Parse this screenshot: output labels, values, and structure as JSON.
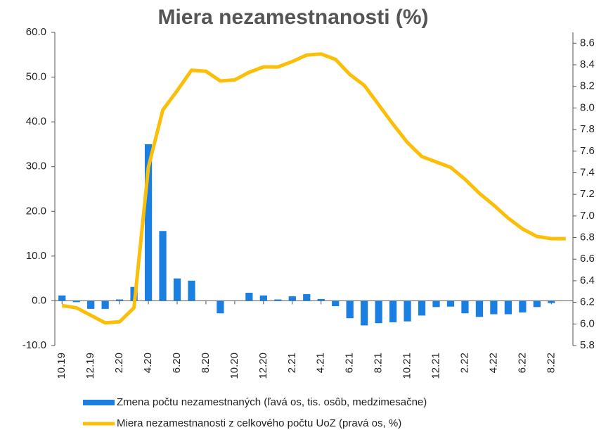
{
  "chart_data": {
    "type": "bar_line",
    "title": "Miera nezamestnanosti (%)",
    "categories": [
      "10.19",
      null,
      "12.19",
      null,
      "2.20",
      null,
      "4.20",
      null,
      "6.20",
      null,
      "8.20",
      null,
      "10.20",
      null,
      "12.20",
      null,
      "2.21",
      null,
      "4.21",
      null,
      "6.21",
      null,
      "8.21",
      null,
      "10.21",
      null,
      "12.21",
      null,
      "2.22",
      null,
      "4.22",
      null,
      "6.22",
      null,
      "8.22",
      null
    ],
    "series": [
      {
        "name": "Zmena počtu nezamestnaných (ľavá os, tis. osôb, medzimesačne)",
        "color": "#1a7fe0",
        "kind": "bar",
        "axis": "y",
        "values": [
          1.2,
          -0.3,
          -1.8,
          -1.8,
          0.3,
          3.1,
          35,
          15.6,
          5.0,
          4.5,
          0,
          -2.8,
          0,
          1.8,
          1.2,
          0.3,
          1.0,
          1.5,
          0.4,
          -1.2,
          -3.9,
          -5.5,
          -5.0,
          -4.8,
          -4.6,
          -3.3,
          -1.4,
          -1.3,
          -2.8,
          -3.6,
          -3.0,
          -3.0,
          -2.6,
          -1.4,
          -0.5,
          null
        ]
      },
      {
        "name": "Miera nezamestnanosti z celkového počtu UoZ (pravá os, %)",
        "color": "#fbbf0a",
        "kind": "line",
        "axis": "y2",
        "values": [
          6.17,
          6.15,
          6.08,
          6.01,
          6.02,
          6.15,
          7.45,
          7.98,
          8.16,
          8.35,
          8.34,
          8.25,
          8.26,
          8.33,
          8.38,
          8.38,
          8.43,
          8.49,
          8.5,
          8.45,
          8.31,
          8.21,
          8.03,
          7.85,
          7.68,
          7.55,
          7.5,
          7.45,
          7.34,
          7.21,
          7.1,
          6.98,
          6.88,
          6.81,
          6.79,
          6.79
        ]
      }
    ],
    "ylim": [
      -10,
      60
    ],
    "yticks": [
      {
        "value": -10,
        "label": "-10.0"
      },
      {
        "value": 0,
        "label": "0.0"
      },
      {
        "value": 10,
        "label": "10.0"
      },
      {
        "value": 20,
        "label": "20.0"
      },
      {
        "value": 30,
        "label": "30.0"
      },
      {
        "value": 40,
        "label": "40.0"
      },
      {
        "value": 50,
        "label": "50.0"
      },
      {
        "value": 60,
        "label": "60.0"
      }
    ],
    "y2lim": [
      5.8,
      8.7
    ],
    "y2ticks": [
      5.8,
      {
        "value": 6,
        "label": "6.0"
      },
      6.2,
      6.4,
      6.6,
      6.8,
      {
        "value": 7,
        "label": "7.0"
      },
      7.2,
      7.4,
      7.6,
      7.8,
      {
        "value": 8,
        "label": "8.0"
      },
      8.2,
      8.4,
      8.6
    ]
  }
}
